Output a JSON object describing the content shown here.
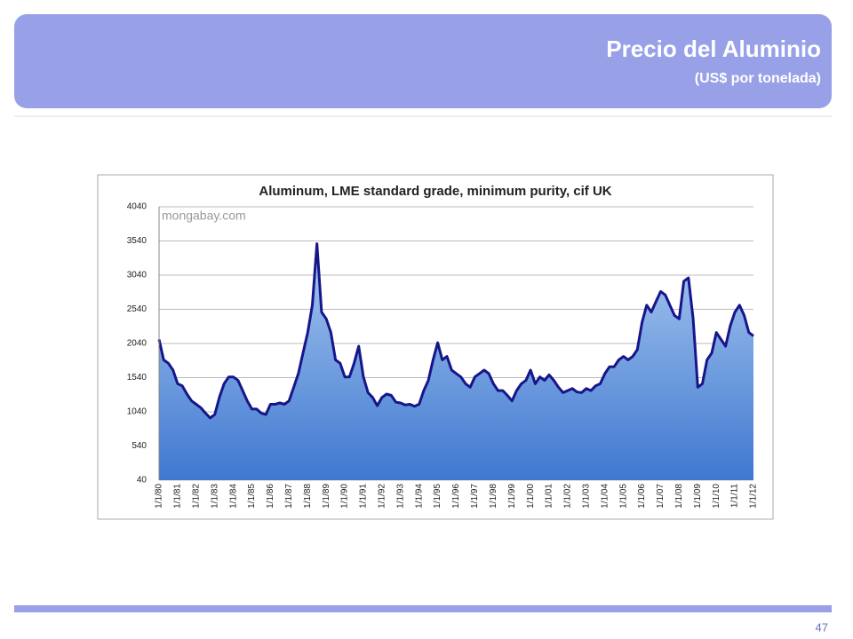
{
  "header": {
    "title": "Precio del Aluminio",
    "subtitle": "(US$ por tonelada)"
  },
  "footer": {
    "page_number": "47"
  },
  "chart_data": {
    "type": "area",
    "title": "Aluminum, LME standard grade, minimum purity, cif UK",
    "watermark": "mongabay.com",
    "categories": [
      "1/1/80",
      null,
      null,
      null,
      "1/1/81",
      null,
      null,
      null,
      "1/1/82",
      null,
      null,
      null,
      "1/1/83",
      null,
      null,
      null,
      "1/1/84",
      null,
      null,
      null,
      "1/1/85",
      null,
      null,
      null,
      "1/1/86",
      null,
      null,
      null,
      "1/1/87",
      null,
      null,
      null,
      "1/1/88",
      null,
      null,
      null,
      "1/1/89",
      null,
      null,
      null,
      "1/1/90",
      null,
      null,
      null,
      "1/1/91",
      null,
      null,
      null,
      "1/1/92",
      null,
      null,
      null,
      "1/1/93",
      null,
      null,
      null,
      "1/1/94",
      null,
      null,
      null,
      "1/1/95",
      null,
      null,
      null,
      "1/1/96",
      null,
      null,
      null,
      "1/1/97",
      null,
      null,
      null,
      "1/1/98",
      null,
      null,
      null,
      "1/1/99",
      null,
      null,
      null,
      "1/1/00",
      null,
      null,
      null,
      "1/1/01",
      null,
      null,
      null,
      "1/1/02",
      null,
      null,
      null,
      "1/1/03",
      null,
      null,
      null,
      "1/1/04",
      null,
      null,
      null,
      "1/1/05",
      null,
      null,
      null,
      "1/1/06",
      null,
      null,
      null,
      "1/1/07",
      null,
      null,
      null,
      "1/1/08",
      null,
      null,
      null,
      "1/1/09",
      null,
      null,
      null,
      "1/1/10",
      null,
      null,
      null,
      "1/1/11",
      null,
      null,
      null,
      "1/1/12"
    ],
    "values": [
      2100,
      1800,
      1750,
      1650,
      1450,
      1420,
      1300,
      1200,
      1150,
      1100,
      1020,
      950,
      1000,
      1250,
      1450,
      1550,
      1550,
      1500,
      1350,
      1200,
      1080,
      1080,
      1020,
      1000,
      1150,
      1150,
      1170,
      1150,
      1200,
      1400,
      1600,
      1900,
      2200,
      2600,
      3500,
      2500,
      2400,
      2200,
      1800,
      1750,
      1550,
      1550,
      1750,
      2000,
      1550,
      1320,
      1250,
      1130,
      1250,
      1300,
      1280,
      1180,
      1170,
      1140,
      1150,
      1120,
      1150,
      1350,
      1500,
      1800,
      2050,
      1800,
      1850,
      1650,
      1600,
      1550,
      1450,
      1400,
      1550,
      1600,
      1650,
      1600,
      1450,
      1350,
      1350,
      1280,
      1200,
      1350,
      1450,
      1500,
      1650,
      1450,
      1550,
      1500,
      1580,
      1500,
      1400,
      1320,
      1350,
      1380,
      1330,
      1320,
      1380,
      1350,
      1420,
      1450,
      1600,
      1700,
      1700,
      1800,
      1850,
      1800,
      1850,
      1950,
      2350,
      2600,
      2500,
      2650,
      2800,
      2750,
      2600,
      2450,
      2400,
      2950,
      3000,
      2400,
      1400,
      1450,
      1800,
      1900,
      2200,
      2100,
      2000,
      2300,
      2500,
      2600,
      2450,
      2200,
      2150
    ],
    "color": "#16168a",
    "fill": "#4f86d8",
    "ylim": [
      40,
      4040
    ],
    "yticks": [
      40,
      540,
      1040,
      1540,
      2040,
      2540,
      3040,
      3540,
      4040
    ],
    "grid": true
  }
}
